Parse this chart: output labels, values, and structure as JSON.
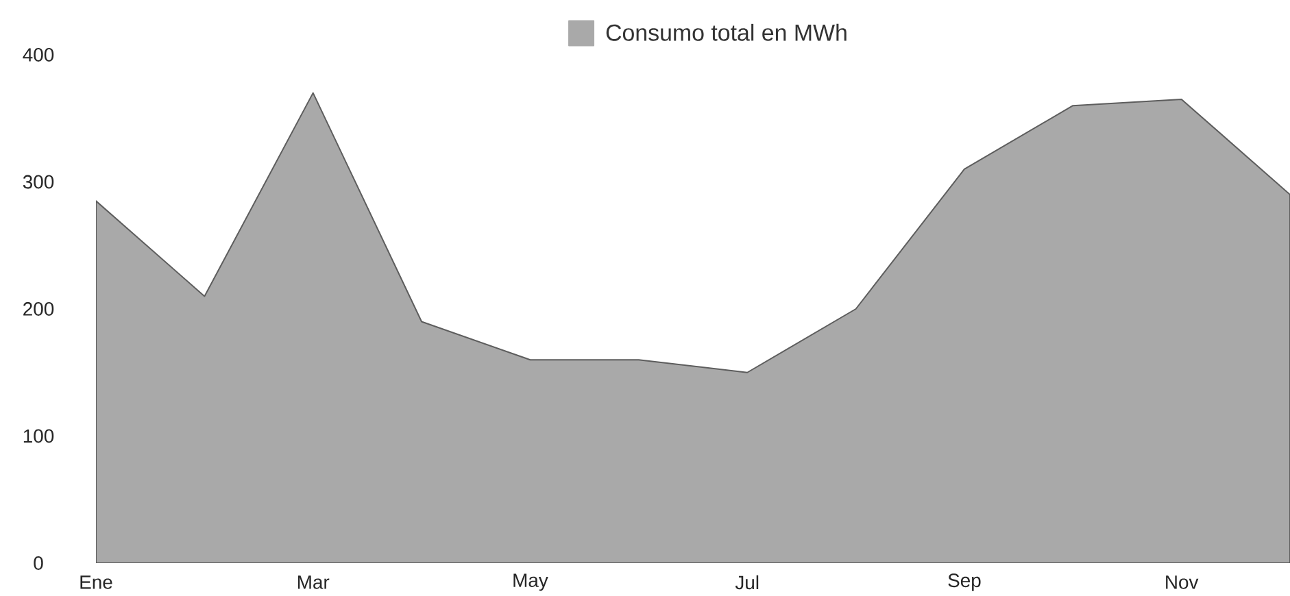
{
  "chart_data": {
    "type": "area",
    "categories": [
      "Ene",
      null,
      "Mar",
      null,
      "May",
      null,
      "Jul",
      null,
      "Sep",
      null,
      "Nov",
      null
    ],
    "series": [
      {
        "name": "Consumo total en MWh",
        "color": "#a9a9a9",
        "values": [
          285,
          210,
          370,
          190,
          160,
          160,
          150,
          200,
          310,
          360,
          365,
          290
        ]
      }
    ],
    "ylim": [
      0,
      400
    ],
    "yticks": [
      0,
      100,
      200,
      300,
      400
    ],
    "legend": "top"
  }
}
